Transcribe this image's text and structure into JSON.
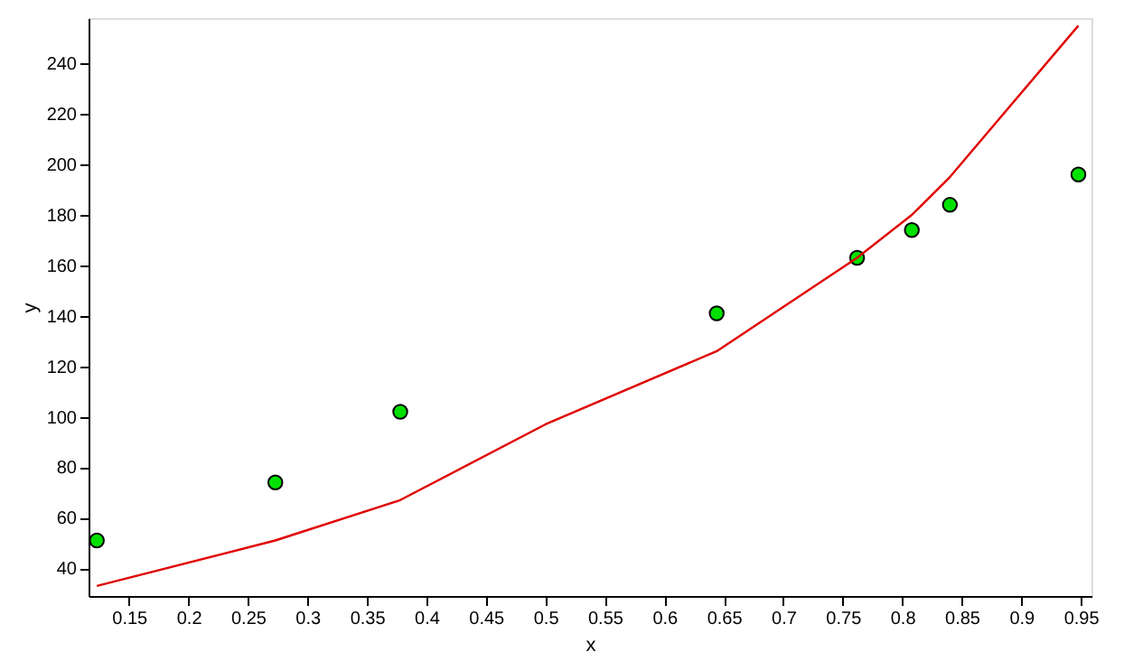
{
  "chart_data": {
    "type": "scatter",
    "xlabel": "x",
    "ylabel": "y",
    "xlim": [
      0.116,
      0.959
    ],
    "ylim": [
      29,
      258
    ],
    "xticks": [
      0.15,
      0.2,
      0.25,
      0.3,
      0.35,
      0.4,
      0.45,
      0.5,
      0.55,
      0.6,
      0.65,
      0.7,
      0.75,
      0.8,
      0.85,
      0.9,
      0.95
    ],
    "yticks": [
      40,
      60,
      80,
      100,
      120,
      140,
      160,
      180,
      200,
      220,
      240
    ],
    "grid": false,
    "marker": "circle",
    "series": [
      {
        "type": "scatter",
        "color": "#00e000",
        "x": [
          0.123,
          0.273,
          0.378,
          0.644,
          0.762,
          0.808,
          0.84,
          0.948
        ],
        "values": [
          51,
          74,
          102,
          141,
          163,
          174,
          184,
          196
        ]
      },
      {
        "type": "line",
        "marker": "none",
        "color": "#e00000",
        "x": [
          0.123,
          0.273,
          0.378,
          0.5,
          0.644,
          0.762,
          0.808,
          0.84,
          0.948
        ],
        "values": [
          33,
          51,
          67,
          97,
          126,
          163,
          180,
          195,
          255
        ]
      }
    ]
  }
}
